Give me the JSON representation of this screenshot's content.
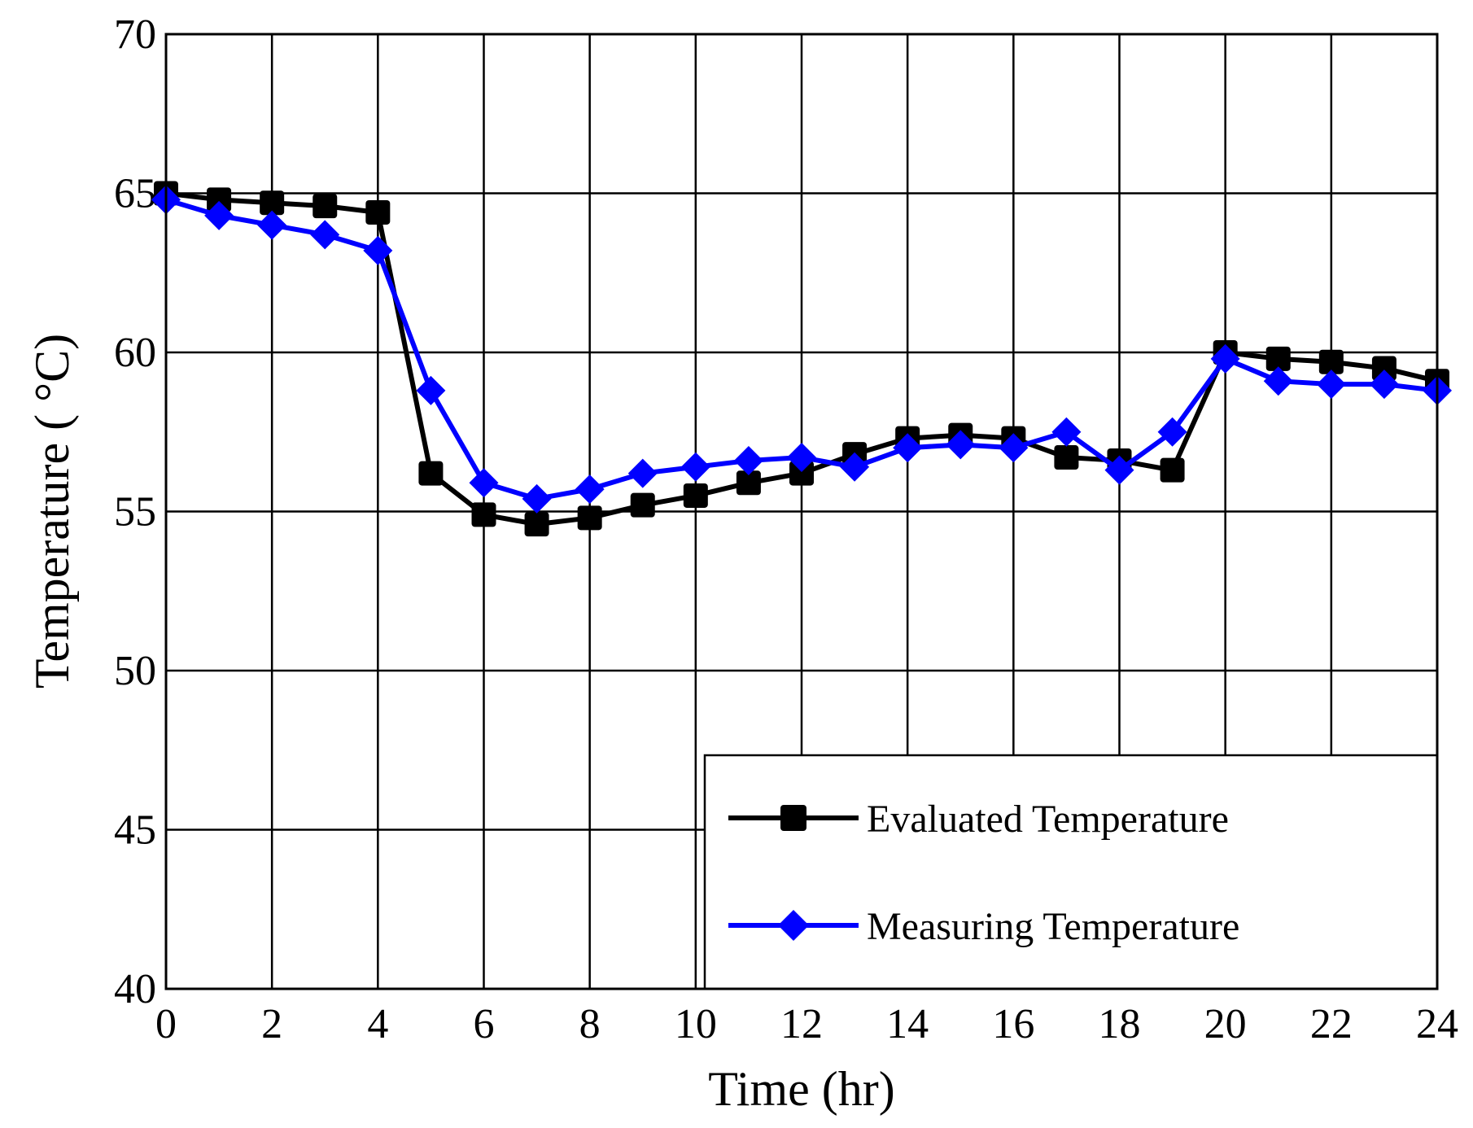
{
  "chart_data": {
    "type": "line",
    "title": "",
    "xlabel": "Time (hr)",
    "ylabel": "Temperature ( °C)",
    "xlim": [
      0,
      24
    ],
    "ylim": [
      40,
      70
    ],
    "xticks": [
      "0",
      "2",
      "4",
      "6",
      "8",
      "10",
      "12",
      "14",
      "16",
      "18",
      "20",
      "22",
      "24"
    ],
    "yticks": [
      "40",
      "45",
      "50",
      "55",
      "60",
      "65",
      "70"
    ],
    "grid": true,
    "legend_position": "bottom-right",
    "x": [
      0,
      1,
      2,
      3,
      4,
      5,
      6,
      7,
      8,
      9,
      10,
      11,
      12,
      13,
      14,
      15,
      16,
      17,
      18,
      19,
      20,
      21,
      22,
      23,
      24
    ],
    "series": [
      {
        "name": "Evaluated Temperature",
        "color": "#000000",
        "marker": "square",
        "values": [
          65.0,
          64.8,
          64.7,
          64.6,
          64.4,
          56.2,
          54.9,
          54.6,
          54.8,
          55.2,
          55.5,
          55.9,
          56.2,
          56.8,
          57.3,
          57.4,
          57.3,
          56.7,
          56.6,
          56.3,
          60.0,
          59.8,
          59.7,
          59.5,
          59.1
        ]
      },
      {
        "name": "Measuring Temperature",
        "color": "#0000ff",
        "marker": "diamond",
        "values": [
          64.8,
          64.3,
          64.0,
          63.7,
          63.2,
          58.8,
          55.9,
          55.4,
          55.7,
          56.2,
          56.4,
          56.6,
          56.7,
          56.4,
          57.0,
          57.1,
          57.0,
          57.5,
          56.3,
          57.5,
          59.8,
          59.1,
          59.0,
          59.0,
          58.8
        ]
      }
    ]
  }
}
